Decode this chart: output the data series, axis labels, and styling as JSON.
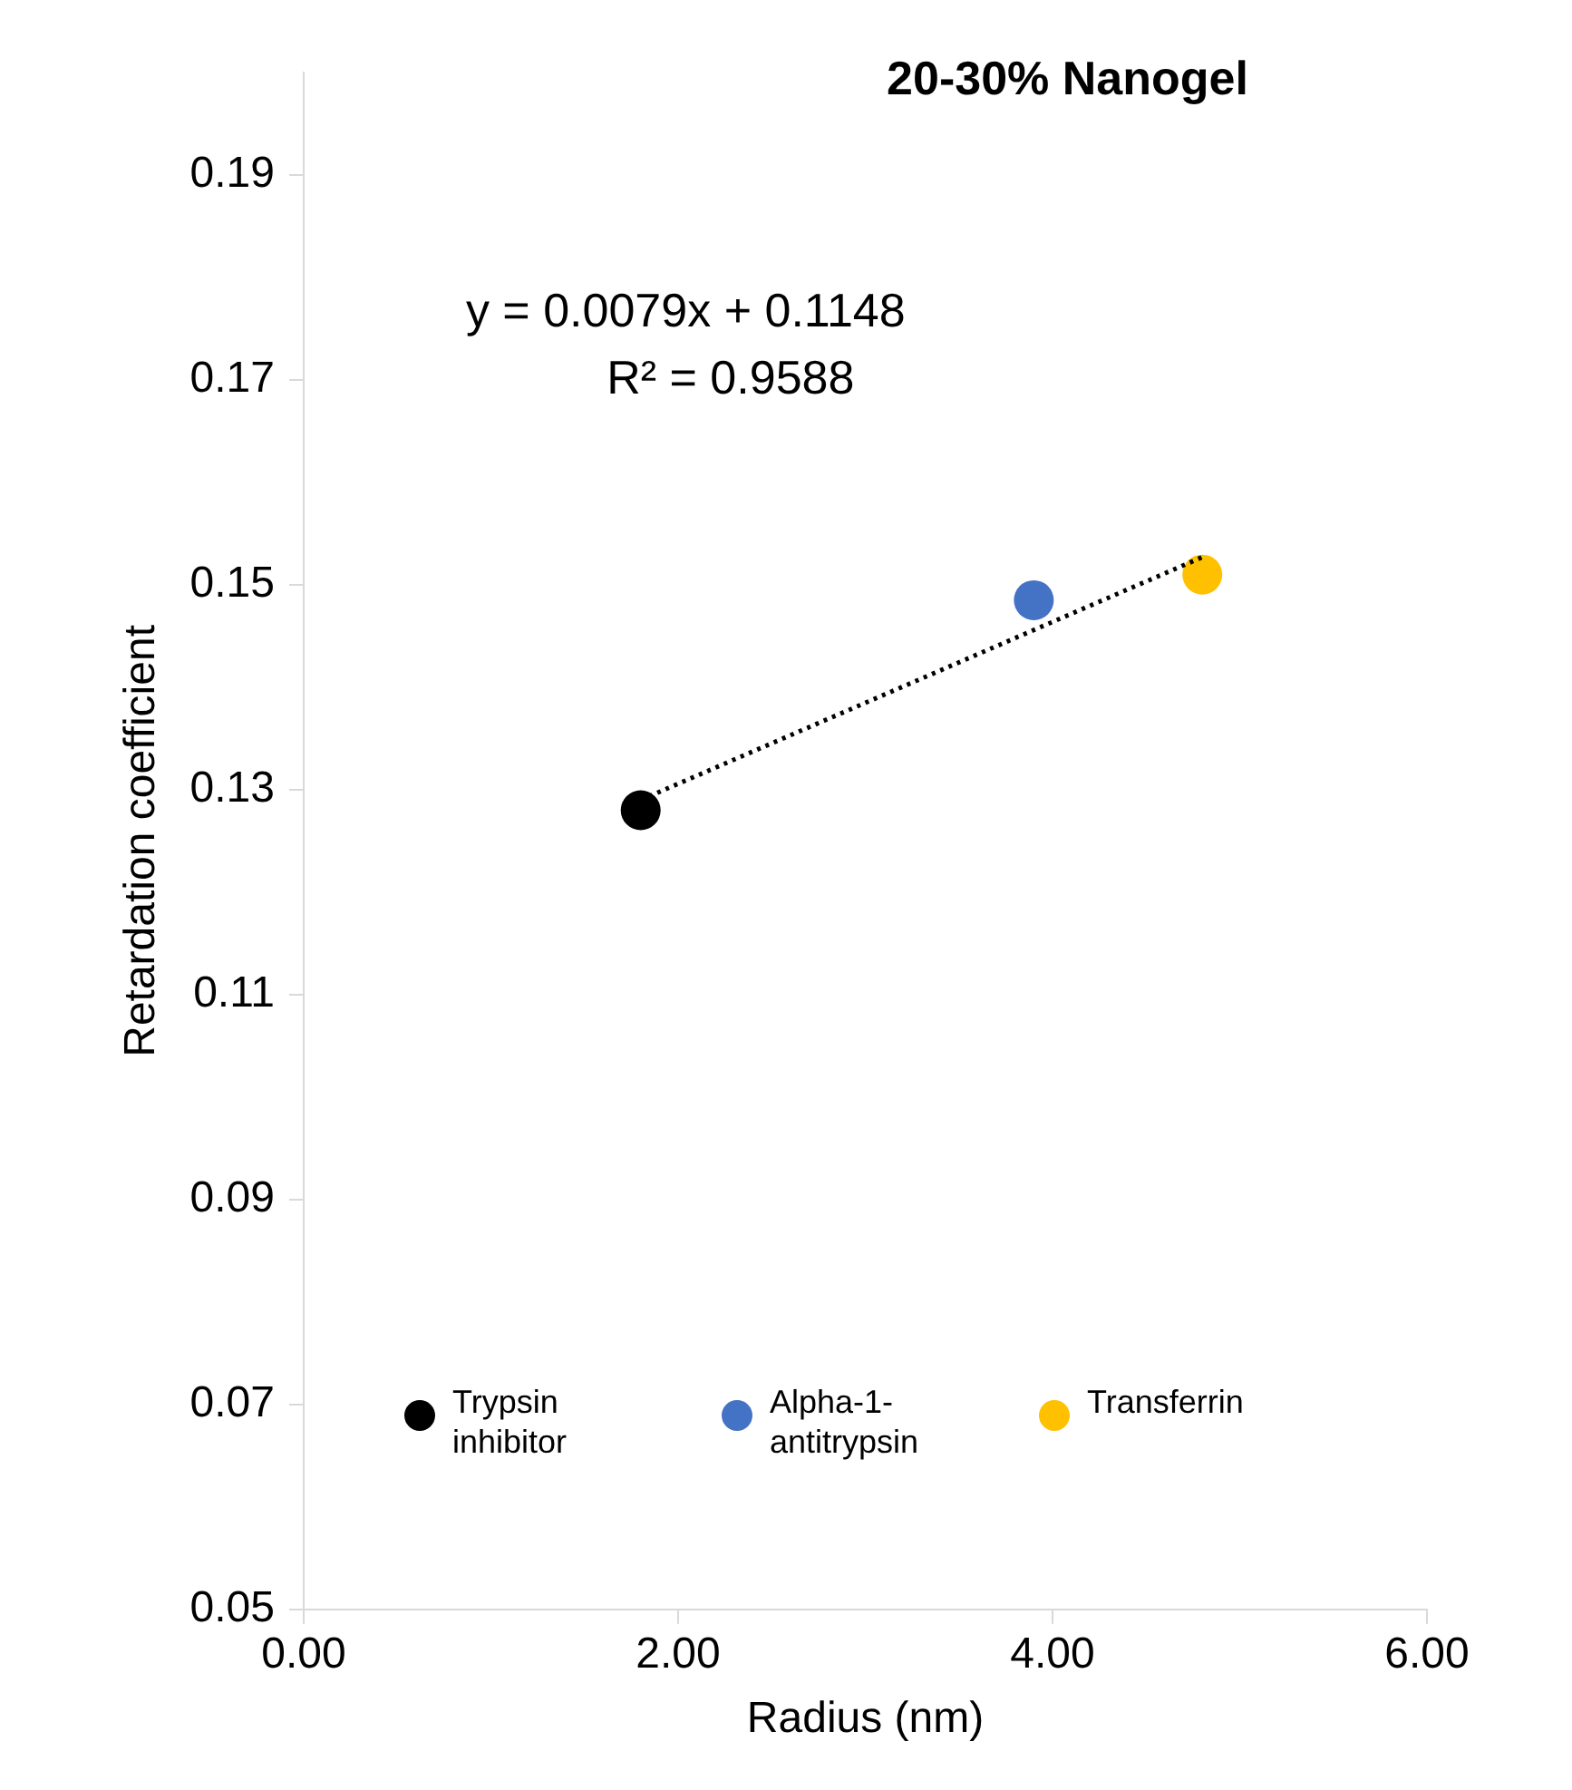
{
  "chart_data": {
    "type": "scatter",
    "title": "20-30% Nanogel",
    "xlabel": "Radius (nm)",
    "ylabel": "Retardation coefficient",
    "xlim": [
      0,
      6
    ],
    "xticks": [
      {
        "value": 0,
        "label": "0.00"
      },
      {
        "value": 2,
        "label": "2.00"
      },
      {
        "value": 4,
        "label": "4.00"
      },
      {
        "value": 6,
        "label": "6.00"
      }
    ],
    "ylim": [
      0.05,
      0.2
    ],
    "yticks": [
      0.05,
      0.07,
      0.09,
      0.11,
      0.13,
      0.15,
      0.17,
      0.19
    ],
    "grid": false,
    "legend": "bottom",
    "marker": "circle",
    "annotations": [
      "y = 0.0079x + 0.1148",
      "R² = 0.9588"
    ],
    "series": [
      {
        "name": "Trypsin inhibitor",
        "color": "#000000",
        "x": [
          1.8
        ],
        "values": [
          0.128
        ]
      },
      {
        "name": "Alpha-1-antitrypsin",
        "color": "#4472c4",
        "x": [
          3.9
        ],
        "values": [
          0.1485
        ]
      },
      {
        "name": "Transferrin",
        "color": "#ffc000",
        "x": [
          4.8
        ],
        "values": [
          0.151
        ]
      },
      {
        "type": "line",
        "color": "#000000",
        "line_style": "dotted",
        "marker": "none",
        "x": [
          1.8,
          4.8
        ],
        "values": [
          0.129,
          0.1527
        ]
      }
    ]
  }
}
